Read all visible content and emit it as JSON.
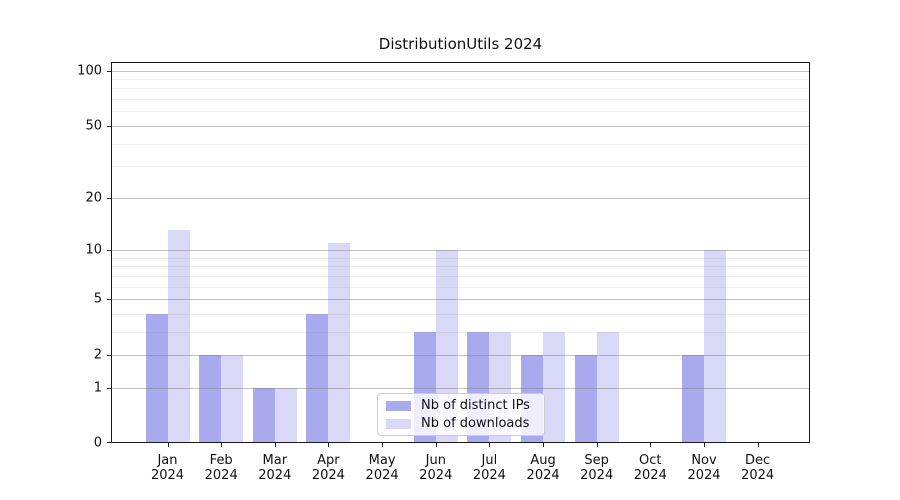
{
  "title": "DistributionUtils 2024",
  "chart_data": {
    "type": "bar",
    "title": "DistributionUtils 2024",
    "categories": [
      "Jan 2024",
      "Feb 2024",
      "Mar 2024",
      "Apr 2024",
      "May 2024",
      "Jun 2024",
      "Jul 2024",
      "Aug 2024",
      "Sep 2024",
      "Oct 2024",
      "Nov 2024",
      "Dec 2024"
    ],
    "series": [
      {
        "name": "Nb of distinct IPs",
        "color": "#a9a9ee",
        "values": [
          4,
          2,
          1,
          4,
          0,
          3,
          3,
          2,
          2,
          0,
          2,
          0
        ]
      },
      {
        "name": "Nb of downloads",
        "color": "#d9d9f7",
        "values": [
          13,
          2,
          1,
          11,
          0,
          10,
          3,
          3,
          3,
          0,
          10,
          0
        ]
      }
    ],
    "xlabel": "",
    "ylabel": "",
    "yscale": "log1p",
    "ylim": [
      0,
      111
    ],
    "yticks": [
      0,
      1,
      2,
      5,
      10,
      20,
      50,
      100
    ],
    "yticks_minor": [
      3,
      4,
      6,
      7,
      8,
      9,
      30,
      40,
      60,
      70,
      80,
      90
    ],
    "grid": "horizontal",
    "legend_position": "lower center-left"
  }
}
